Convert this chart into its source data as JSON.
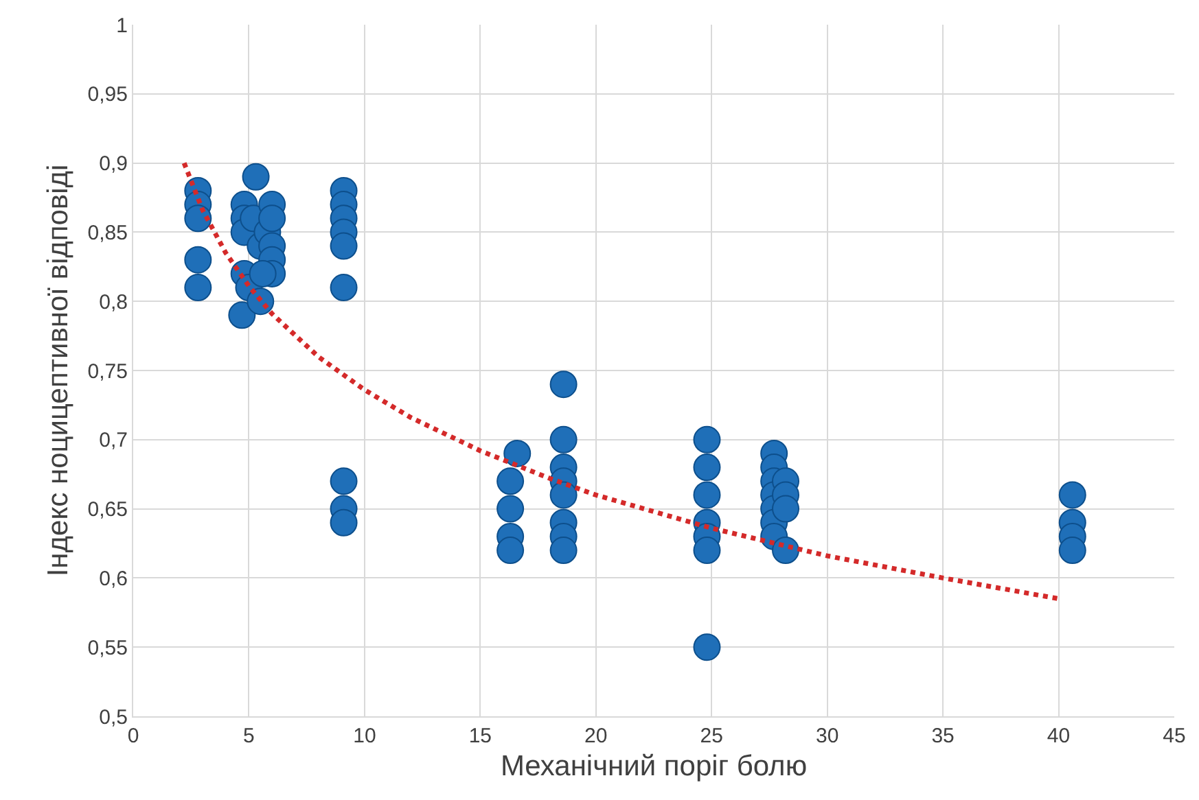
{
  "chart_data": {
    "type": "scatter",
    "xlabel": "Механічний поріг болю",
    "ylabel": "Індекс ноцицептивної відповіді",
    "xlim": [
      0,
      45
    ],
    "xticks": [
      0,
      5,
      10,
      15,
      20,
      25,
      30,
      35,
      40,
      45
    ],
    "ylim": [
      0.5,
      1
    ],
    "yticks": [
      {
        "value": 0.5,
        "label": "0,5"
      },
      {
        "value": 0.55,
        "label": "0,55"
      },
      {
        "value": 0.6,
        "label": "0,6"
      },
      {
        "value": 0.65,
        "label": "0,65"
      },
      {
        "value": 0.7,
        "label": "0,7"
      },
      {
        "value": 0.75,
        "label": "0,75"
      },
      {
        "value": 0.8,
        "label": "0,8"
      },
      {
        "value": 0.85,
        "label": "0,85"
      },
      {
        "value": 0.9,
        "label": "0,9"
      },
      {
        "value": 0.95,
        "label": "0,95"
      },
      {
        "value": 1,
        "label": "1"
      }
    ],
    "grid": true,
    "series": [
      {
        "marker": "circle",
        "color": "#1f6fb8",
        "x": [
          2.8,
          2.8,
          2.8,
          2.8,
          2.8,
          4.8,
          4.8,
          4.8,
          4.8,
          4.7,
          5.0,
          5.2,
          5.3,
          5.5,
          5.5,
          5.8,
          6.0,
          6.0,
          6.0,
          6.0,
          6.0,
          5.6,
          9.1,
          9.1,
          9.1,
          9.1,
          9.1,
          9.1,
          9.1,
          9.1,
          9.1,
          16.3,
          16.3,
          16.3,
          16.3,
          16.6,
          18.6,
          18.6,
          18.6,
          18.6,
          18.6,
          18.6,
          18.6,
          18.6,
          24.8,
          24.8,
          24.8,
          24.8,
          24.8,
          24.8,
          24.8,
          27.7,
          27.7,
          27.7,
          27.7,
          27.7,
          27.7,
          27.7,
          28.2,
          28.2,
          28.2,
          28.2,
          40.6,
          40.6,
          40.6,
          40.6
        ],
        "values": [
          0.88,
          0.87,
          0.86,
          0.83,
          0.81,
          0.87,
          0.86,
          0.85,
          0.82,
          0.79,
          0.81,
          0.86,
          0.89,
          0.84,
          0.8,
          0.85,
          0.87,
          0.86,
          0.84,
          0.83,
          0.82,
          0.82,
          0.88,
          0.87,
          0.86,
          0.85,
          0.84,
          0.81,
          0.67,
          0.65,
          0.64,
          0.67,
          0.65,
          0.63,
          0.62,
          0.69,
          0.74,
          0.7,
          0.68,
          0.67,
          0.66,
          0.64,
          0.63,
          0.62,
          0.7,
          0.68,
          0.66,
          0.64,
          0.63,
          0.62,
          0.55,
          0.69,
          0.68,
          0.67,
          0.66,
          0.65,
          0.64,
          0.63,
          0.67,
          0.66,
          0.65,
          0.62,
          0.66,
          0.64,
          0.63,
          0.62
        ]
      },
      {
        "type": "line",
        "marker": "none",
        "line_style": "dotted",
        "color": "#d42a2a",
        "x": [
          2.2,
          3,
          4,
          5,
          6,
          8,
          10,
          12,
          15,
          18,
          20,
          25,
          30,
          35,
          40
        ],
        "values": [
          0.9,
          0.866,
          0.835,
          0.811,
          0.791,
          0.76,
          0.736,
          0.716,
          0.692,
          0.672,
          0.66,
          0.636,
          0.616,
          0.6,
          0.585
        ]
      }
    ]
  }
}
